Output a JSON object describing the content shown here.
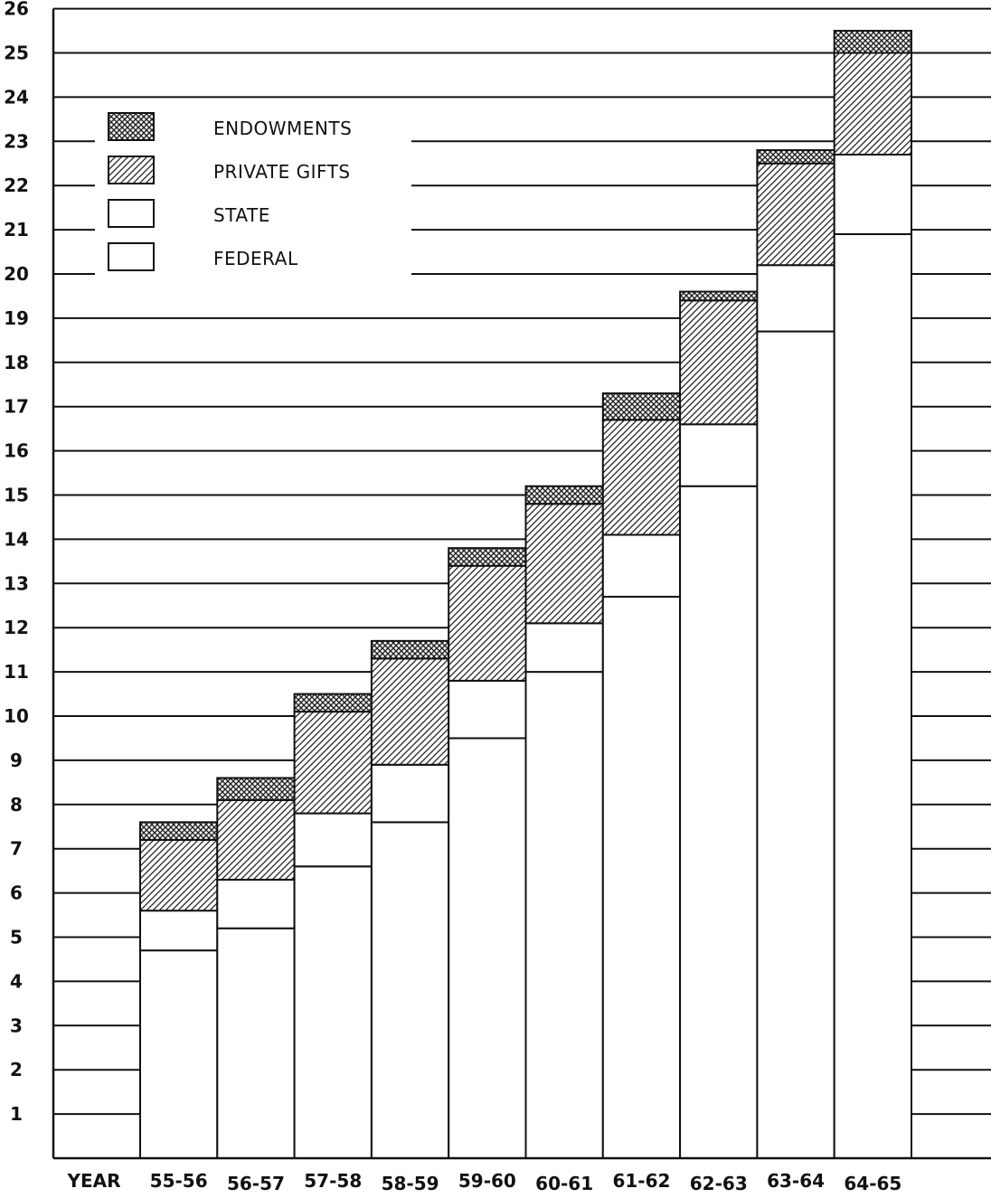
{
  "chart_data": {
    "type": "bar",
    "stacked": true,
    "title": "",
    "xlabel": "YEAR",
    "ylabel": "",
    "ylim": [
      0,
      26
    ],
    "yticks": [
      1,
      2,
      3,
      4,
      5,
      6,
      7,
      8,
      9,
      10,
      11,
      12,
      13,
      14,
      15,
      16,
      17,
      18,
      19,
      20,
      21,
      22,
      23,
      24,
      25,
      26
    ],
    "grid": true,
    "legend_position": "top-left",
    "categories": [
      "55-56",
      "56-57",
      "57-58",
      "58-59",
      "59-60",
      "60-61",
      "61-62",
      "62-63",
      "63-64",
      "64-65"
    ],
    "series": [
      {
        "name": "FEDERAL",
        "pattern": "plain",
        "values": [
          4.7,
          5.2,
          6.6,
          7.6,
          9.5,
          11.0,
          12.7,
          15.2,
          18.7,
          20.9
        ]
      },
      {
        "name": "STATE",
        "pattern": "plain",
        "values": [
          0.9,
          1.1,
          1.2,
          1.3,
          1.3,
          1.1,
          1.4,
          1.4,
          1.5,
          1.8
        ]
      },
      {
        "name": "PRIVATE GIFTS",
        "pattern": "diagonal-hatch",
        "values": [
          1.6,
          1.8,
          2.3,
          2.4,
          2.6,
          2.7,
          2.6,
          2.8,
          2.3,
          2.3
        ]
      },
      {
        "name": "ENDOWMENTS",
        "pattern": "cross-hatch",
        "values": [
          0.4,
          0.5,
          0.4,
          0.4,
          0.4,
          0.4,
          0.6,
          0.2,
          0.3,
          0.5
        ]
      }
    ],
    "legend_order": [
      "ENDOWMENTS",
      "PRIVATE GIFTS",
      "STATE",
      "FEDERAL"
    ],
    "colors": {
      "ink": "#111111",
      "background": "#ffffff"
    }
  }
}
